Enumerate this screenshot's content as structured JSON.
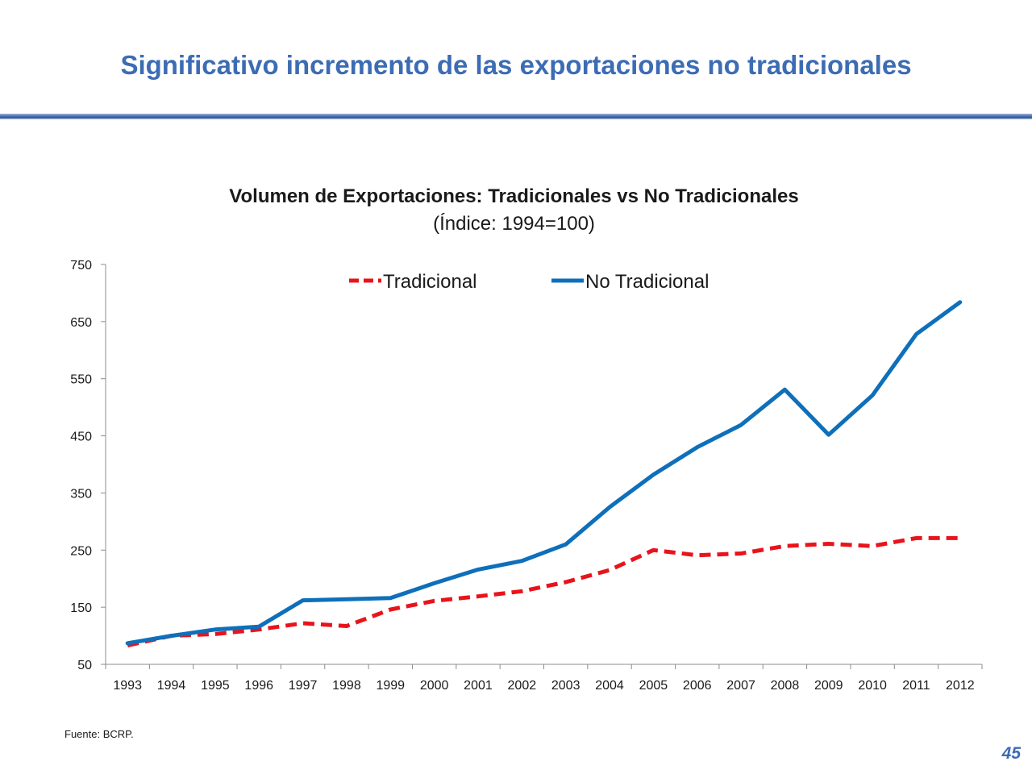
{
  "slide": {
    "title": "Significativo incremento de las exportaciones no tradicionales",
    "source": "Fuente:  BCRP.",
    "page_number": "45",
    "accent_color": "#3c6cb4"
  },
  "chart_data": {
    "type": "line",
    "title": "Volumen de Exportaciones: Tradicionales vs No Tradicionales",
    "subtitle": "(Índice: 1994=100)",
    "xlabel": "",
    "ylabel": "",
    "ylim": [
      50,
      750
    ],
    "yticks": [
      50,
      150,
      250,
      350,
      450,
      550,
      650,
      750
    ],
    "categories": [
      "1993",
      "1994",
      "1995",
      "1996",
      "1997",
      "1998",
      "1999",
      "2000",
      "2001",
      "2002",
      "2003",
      "2004",
      "2005",
      "2006",
      "2007",
      "2008",
      "2009",
      "2010",
      "2011",
      "2012"
    ],
    "grid": false,
    "legend_position": "top-center",
    "series": [
      {
        "name": "Tradicional",
        "color": "#e8141c",
        "dash": "dashed",
        "values": [
          83,
          100,
          103,
          111,
          122,
          117,
          146,
          161,
          169,
          178,
          194,
          215,
          250,
          241,
          244,
          257,
          261,
          257,
          271,
          271
        ]
      },
      {
        "name": "No Tradicional",
        "color": "#0e6fba",
        "dash": "solid",
        "values": [
          87,
          100,
          111,
          116,
          162,
          164,
          166,
          192,
          216,
          231,
          260,
          325,
          382,
          430,
          469,
          531,
          452,
          521,
          628,
          684
        ]
      }
    ]
  }
}
